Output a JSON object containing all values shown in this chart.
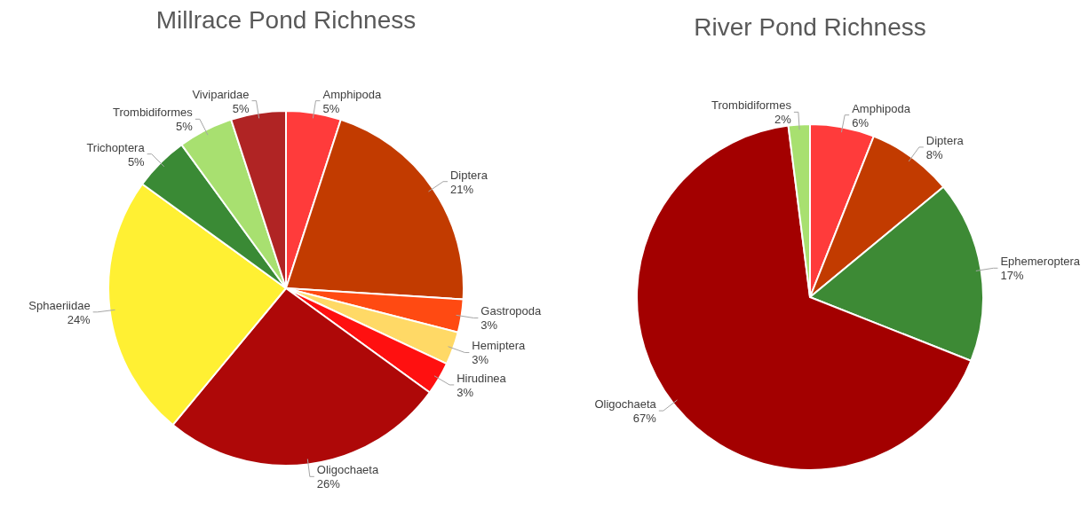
{
  "chart_data": [
    {
      "type": "pie",
      "title": "Millrace Pond Richness",
      "categories": [
        "Amphipoda",
        "Diptera",
        "Gastropoda",
        "Hemiptera",
        "Hirudinea",
        "Oligochaeta",
        "Sphaeriidae",
        "Trichoptera",
        "Trombidiformes",
        "Viviparidae"
      ],
      "values": [
        5,
        21,
        3,
        3,
        3,
        26,
        24,
        5,
        5,
        5
      ],
      "value_labels": [
        "5%",
        "21%",
        "3%",
        "3%",
        "3%",
        "26%",
        "24%",
        "5%",
        "5%",
        "5%"
      ],
      "colors": [
        "#ff3b3b",
        "#c23b00",
        "#ff4a12",
        "#ffd966",
        "#ff1010",
        "#ae0808",
        "#fff033",
        "#3a8a35",
        "#a8e070",
        "#b02424"
      ]
    },
    {
      "type": "pie",
      "title": "River Pond Richness",
      "categories": [
        "Amphipoda",
        "Diptera",
        "Ephemeroptera",
        "Oligochaeta",
        "Trombidiformes"
      ],
      "values": [
        6,
        8,
        17,
        67,
        2
      ],
      "value_labels": [
        "6%",
        "8%",
        "17%",
        "67%",
        "2%"
      ],
      "colors": [
        "#ff3b3b",
        "#c23b00",
        "#3d8a35",
        "#a30000",
        "#a8e070"
      ]
    }
  ]
}
